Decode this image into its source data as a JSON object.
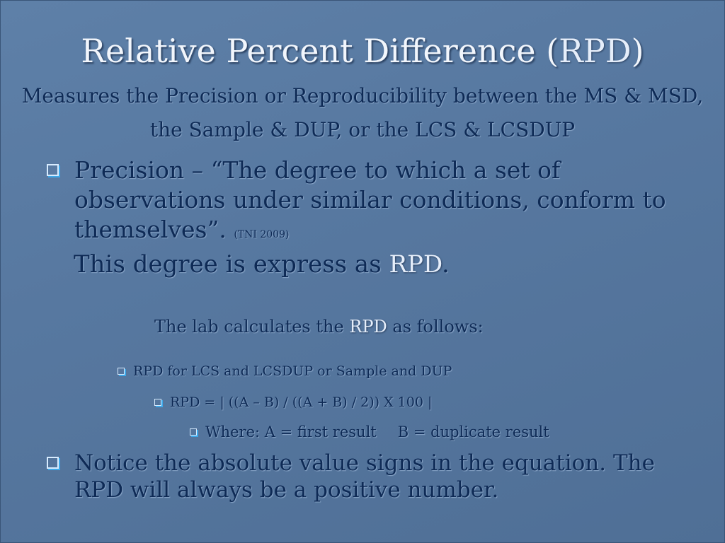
{
  "title": {
    "main": "Relative Percent Difference (",
    "abbr": "RPD",
    "close": ")"
  },
  "subtitle": "Measures the Precision or Reproducibility between the MS & MSD, the Sample & DUP, or the LCS & LCSDUP",
  "bullets": {
    "precision": {
      "text": "Precision – “The degree to which a set of observations under similar conditions, conform to themselves”.",
      "cite": "(TNI 2009)"
    },
    "expressed": {
      "text": "This degree is express as ",
      "abbr": "RPD",
      "end": "."
    },
    "lab": {
      "text": "The lab calculates the ",
      "abbr": "RPD",
      "end": " as follows:"
    },
    "sub1": "RPD for LCS and LCSDUP or Sample and DUP",
    "sub2": "RPD = | ((A – B) / ((A + B) / 2)) X 100 |",
    "sub3": {
      "a": "Where: A = first result",
      "b": "B = duplicate result"
    },
    "notice": "Notice the absolute value signs in the equation. The RPD will always be a positive number."
  },
  "colors": {
    "background": "#5778a0",
    "title": "#f2f6fc",
    "body_text": "#0e2a55",
    "highlight": "#e6eefa",
    "bullet": "#3fa8e8"
  }
}
